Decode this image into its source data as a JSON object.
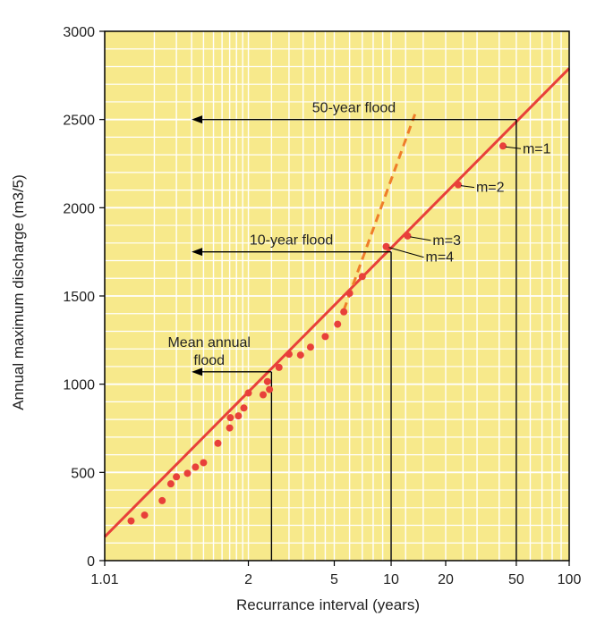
{
  "chart_data": {
    "type": "scatter",
    "title": "",
    "xlabel": "Recurrance interval (years)",
    "ylabel": "Annual maximum discharge (m3/5)",
    "x_scale": "gumbel",
    "xlim": [
      1.01,
      100
    ],
    "ylim": [
      0,
      3000
    ],
    "grid": true,
    "x_ticks": [
      {
        "value": 1.01,
        "label": "1.01"
      },
      {
        "value": 2,
        "label": "2"
      },
      {
        "value": 5,
        "label": "5"
      },
      {
        "value": 10,
        "label": "10"
      },
      {
        "value": 20,
        "label": "20"
      },
      {
        "value": 50,
        "label": "50"
      },
      {
        "value": 100,
        "label": "100"
      }
    ],
    "y_ticks": [
      {
        "value": 0,
        "label": "0"
      },
      {
        "value": 500,
        "label": "500"
      },
      {
        "value": 1000,
        "label": "1000"
      },
      {
        "value": 1500,
        "label": "1500"
      },
      {
        "value": 2000,
        "label": "2000"
      },
      {
        "value": 2500,
        "label": "2500"
      },
      {
        "value": 3000,
        "label": "3000"
      }
    ],
    "points": [
      {
        "x": 1.04,
        "y": 225
      },
      {
        "x": 1.07,
        "y": 258
      },
      {
        "x": 1.13,
        "y": 340
      },
      {
        "x": 1.17,
        "y": 435
      },
      {
        "x": 1.2,
        "y": 475
      },
      {
        "x": 1.27,
        "y": 495
      },
      {
        "x": 1.33,
        "y": 530
      },
      {
        "x": 1.4,
        "y": 555
      },
      {
        "x": 1.55,
        "y": 665
      },
      {
        "x": 1.7,
        "y": 752
      },
      {
        "x": 1.71,
        "y": 810
      },
      {
        "x": 1.83,
        "y": 820
      },
      {
        "x": 1.92,
        "y": 865
      },
      {
        "x": 2.0,
        "y": 950
      },
      {
        "x": 2.3,
        "y": 940
      },
      {
        "x": 2.4,
        "y": 1015
      },
      {
        "x": 2.45,
        "y": 970
      },
      {
        "x": 2.7,
        "y": 1095
      },
      {
        "x": 3.0,
        "y": 1170
      },
      {
        "x": 3.4,
        "y": 1165
      },
      {
        "x": 3.8,
        "y": 1210
      },
      {
        "x": 4.5,
        "y": 1270
      },
      {
        "x": 5.2,
        "y": 1340
      },
      {
        "x": 5.6,
        "y": 1410
      },
      {
        "x": 6.0,
        "y": 1515
      },
      {
        "x": 7.0,
        "y": 1610
      },
      {
        "x": 9.4,
        "y": 1780
      },
      {
        "x": 12.3,
        "y": 1840
      },
      {
        "x": 23.5,
        "y": 2130
      },
      {
        "x": 42,
        "y": 2350
      }
    ],
    "fit_line": [
      {
        "x": 1.01,
        "y": 135
      },
      {
        "x": 100,
        "y": 2790
      }
    ],
    "dashed_line": [
      {
        "x": 5.6,
        "y": 1420
      },
      {
        "x": 13.5,
        "y": 2530
      }
    ],
    "reference_lines": [
      {
        "label": "50-year flood",
        "x": 50,
        "y": 2500
      },
      {
        "label": "10-year flood",
        "x": 10,
        "y": 1750
      },
      {
        "label": "Mean annual flood",
        "label_lines": [
          "Mean annual",
          "flood"
        ],
        "x": 2.5,
        "y": 1070
      }
    ],
    "rank_labels": [
      {
        "label": "m=1",
        "x": 42,
        "y": 2350
      },
      {
        "label": "m=2",
        "x": 23.5,
        "y": 2130
      },
      {
        "label": "m=3",
        "x": 12.3,
        "y": 1840
      },
      {
        "label": "m=4",
        "x": 9.4,
        "y": 1780
      }
    ],
    "colors": {
      "background": "#f7e98b",
      "grid": "#ffffff",
      "fit_line": "#e8403a",
      "dashed_line": "#ef7d2a",
      "points": "#e8403a",
      "reference_lines": "#000000"
    }
  }
}
